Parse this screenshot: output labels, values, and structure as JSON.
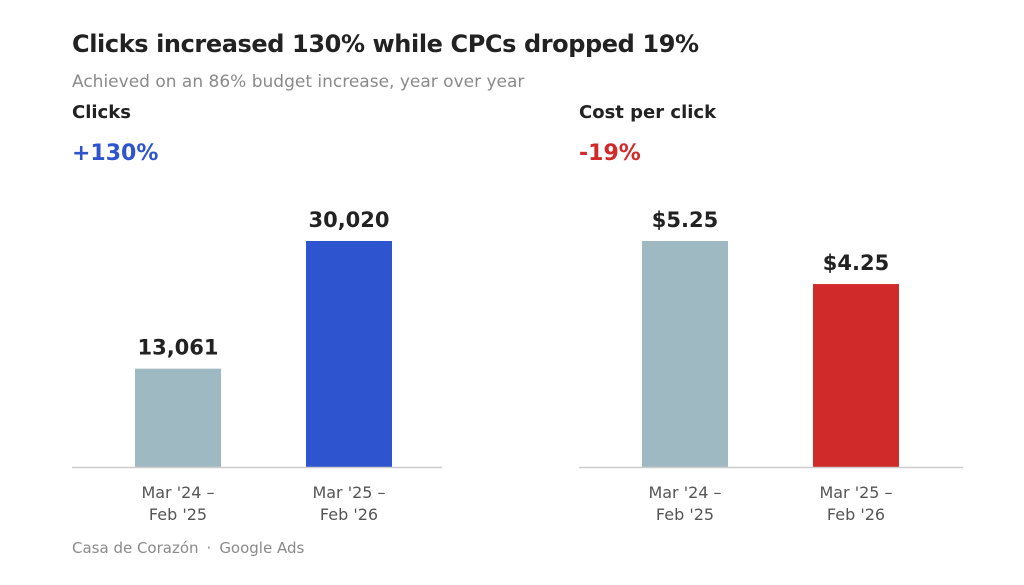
{
  "title": "Clicks increased 130% while CPCs dropped 19%",
  "subtitle": "Achieved on an 86% budget increase, year over year",
  "footer": {
    "source": "Casa de Corazón",
    "separator": "·",
    "platform": "Google Ads"
  },
  "colors": {
    "baseline_bar": "#9fb9c2",
    "clicks_bar": "#2f54cf",
    "cpc_bar": "#d02a2a",
    "clicks_change": "#2f54cf",
    "cpc_change": "#d02a2a",
    "axis": "#cccccc"
  },
  "chart_data": [
    {
      "type": "bar",
      "title": "Clicks",
      "change_label": "+130%",
      "categories": [
        [
          "Mar '24 –",
          "Feb '25"
        ],
        [
          "Mar '25 –",
          "Feb '26"
        ]
      ],
      "values": [
        13061,
        30020
      ],
      "value_labels": [
        "13,061",
        "30,020"
      ],
      "ylim": [
        0,
        30020
      ]
    },
    {
      "type": "bar",
      "title": "Cost per click",
      "change_label": "-19%",
      "categories": [
        [
          "Mar '24 –",
          "Feb '25"
        ],
        [
          "Mar '25 –",
          "Feb '26"
        ]
      ],
      "values": [
        5.25,
        4.25
      ],
      "value_labels": [
        "$5.25",
        "$4.25"
      ],
      "ylim": [
        0,
        5.25
      ]
    }
  ]
}
